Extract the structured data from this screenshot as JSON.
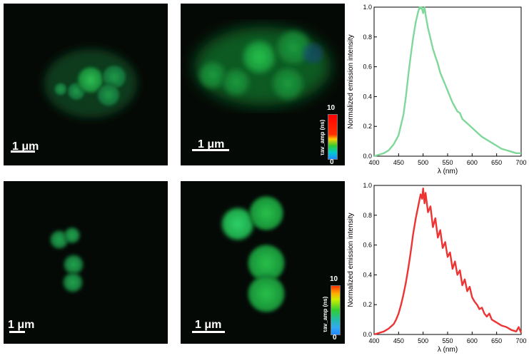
{
  "panels": [
    {
      "scale": "1 μm"
    },
    {
      "scale": "1 μm",
      "colorbar": {
        "max": "10",
        "min": "0",
        "label": "τav_amp (ns)"
      }
    },
    {
      "scale": "1 μm"
    },
    {
      "scale": "1 μm",
      "colorbar": {
        "max": "10",
        "min": "0",
        "label": "τav_amp (ns)"
      }
    }
  ],
  "chart_data": [
    {
      "type": "line",
      "xlabel": "λ (nm)",
      "ylabel": "Normalized emission intensity",
      "xlim": [
        400,
        700
      ],
      "ylim": [
        0,
        1.0
      ],
      "xticks": [
        "400",
        "450",
        "500",
        "550",
        "600",
        "650",
        "700"
      ],
      "yticks": [
        "0.0",
        "0.2",
        "0.4",
        "0.6",
        "0.8",
        "1.0"
      ],
      "color": "#7fd89a",
      "series": [
        {
          "x": [
            400,
            410,
            420,
            430,
            440,
            450,
            460,
            465,
            470,
            475,
            480,
            485,
            490,
            493,
            495,
            497,
            500,
            503,
            505,
            510,
            515,
            520,
            525,
            530,
            535,
            540,
            545,
            550,
            555,
            560,
            565,
            570,
            575,
            580,
            590,
            600,
            610,
            620,
            630,
            640,
            650,
            660,
            670,
            680,
            690,
            700
          ],
          "values": [
            0.0,
            0.01,
            0.02,
            0.04,
            0.08,
            0.14,
            0.28,
            0.4,
            0.55,
            0.68,
            0.8,
            0.9,
            0.97,
            1.0,
            0.99,
            1.0,
            0.96,
            1.0,
            0.95,
            0.86,
            0.79,
            0.72,
            0.67,
            0.62,
            0.56,
            0.52,
            0.48,
            0.44,
            0.4,
            0.36,
            0.33,
            0.3,
            0.29,
            0.25,
            0.22,
            0.19,
            0.16,
            0.13,
            0.11,
            0.09,
            0.07,
            0.05,
            0.04,
            0.03,
            0.02,
            0.02
          ]
        }
      ]
    },
    {
      "type": "line",
      "xlabel": "λ (nm)",
      "ylabel": "Normalized emission intensity",
      "xlim": [
        400,
        700
      ],
      "ylim": [
        0,
        1.0
      ],
      "xticks": [
        "400",
        "450",
        "500",
        "550",
        "600",
        "650",
        "700"
      ],
      "yticks": [
        "0.0",
        "0.2",
        "0.4",
        "0.6",
        "0.8",
        "1.0"
      ],
      "color": "#ee3333",
      "series": [
        {
          "x": [
            400,
            410,
            420,
            430,
            440,
            445,
            450,
            455,
            460,
            465,
            470,
            475,
            480,
            485,
            490,
            495,
            498,
            500,
            503,
            505,
            510,
            515,
            520,
            525,
            530,
            535,
            540,
            545,
            550,
            555,
            560,
            565,
            570,
            575,
            580,
            585,
            590,
            595,
            600,
            605,
            610,
            615,
            620,
            625,
            630,
            635,
            640,
            645,
            650,
            660,
            670,
            680,
            690,
            695,
            700
          ],
          "values": [
            0.0,
            0.01,
            0.02,
            0.04,
            0.07,
            0.1,
            0.14,
            0.2,
            0.27,
            0.35,
            0.45,
            0.56,
            0.68,
            0.78,
            0.86,
            0.94,
            0.91,
            0.98,
            0.88,
            0.95,
            0.82,
            0.86,
            0.72,
            0.78,
            0.65,
            0.7,
            0.58,
            0.62,
            0.52,
            0.55,
            0.44,
            0.49,
            0.4,
            0.43,
            0.33,
            0.37,
            0.29,
            0.32,
            0.25,
            0.22,
            0.2,
            0.17,
            0.18,
            0.14,
            0.12,
            0.14,
            0.1,
            0.09,
            0.08,
            0.06,
            0.05,
            0.03,
            0.02,
            0.05,
            0.01
          ]
        }
      ]
    }
  ]
}
